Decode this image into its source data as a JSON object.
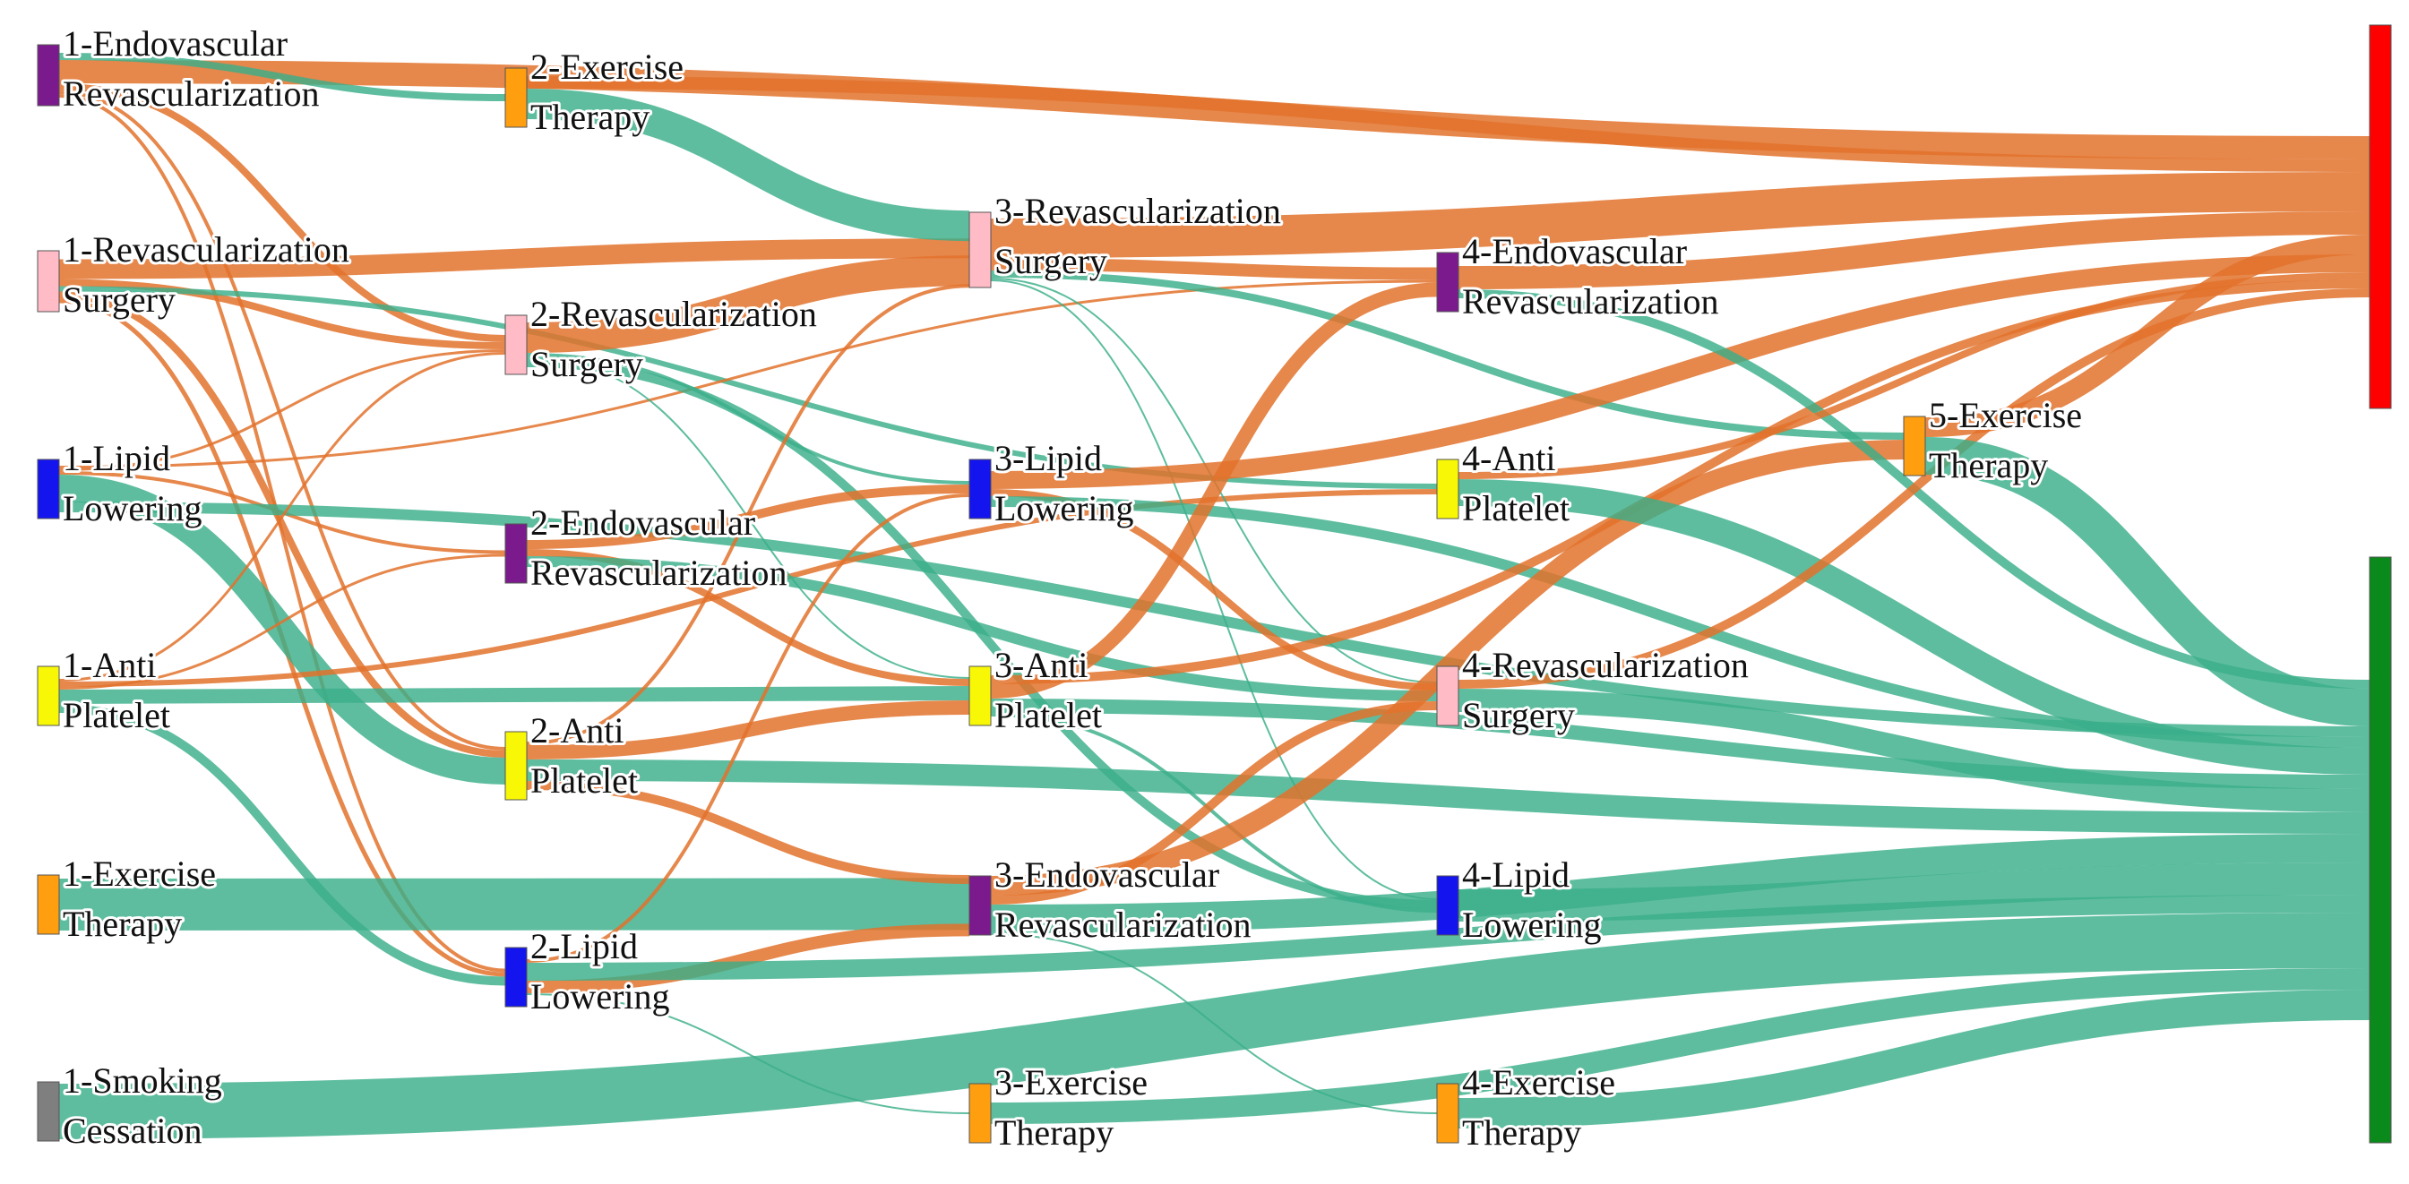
{
  "colors": {
    "link_orange": "#e2722c",
    "link_green": "#3aae8a",
    "endovascular": "#7a1a8c",
    "exercise": "#ff9e0f",
    "surgery": "#ffbcc6",
    "lipid": "#1414ee",
    "antiplatelet": "#f8f806",
    "smoking": "#7f7f7f",
    "sink_red": "#ff0000",
    "sink_green": "#0a8a1a"
  },
  "nodes": [
    {
      "id": "n1e",
      "name": "node-1-endovascular-revascularization",
      "lines": [
        "1-Endovascular",
        "Revascularization"
      ],
      "color": "endovascular"
    },
    {
      "id": "n1s",
      "name": "node-1-revascularization-surgery",
      "lines": [
        "1-Revascularization",
        "Surgery"
      ],
      "color": "surgery"
    },
    {
      "id": "n1l",
      "name": "node-1-lipid-lowering",
      "lines": [
        "1-Lipid",
        "Lowering"
      ],
      "color": "lipid"
    },
    {
      "id": "n1a",
      "name": "node-1-anti-platelet",
      "lines": [
        "1-Anti",
        "Platelet"
      ],
      "color": "antiplatelet"
    },
    {
      "id": "n1x",
      "name": "node-1-exercise-therapy",
      "lines": [
        "1-Exercise",
        "Therapy"
      ],
      "color": "exercise"
    },
    {
      "id": "n1c",
      "name": "node-1-smoking-cessation",
      "lines": [
        "1-Smoking",
        "Cessation"
      ],
      "color": "smoking"
    },
    {
      "id": "n2x",
      "name": "node-2-exercise-therapy",
      "lines": [
        "2-Exercise",
        "Therapy"
      ],
      "color": "exercise"
    },
    {
      "id": "n2s",
      "name": "node-2-revascularization-surgery",
      "lines": [
        "2-Revascularization",
        "Surgery"
      ],
      "color": "surgery"
    },
    {
      "id": "n2e",
      "name": "node-2-endovascular-revascularization",
      "lines": [
        "2-Endovascular",
        "Revascularization"
      ],
      "color": "endovascular"
    },
    {
      "id": "n2a",
      "name": "node-2-anti-platelet",
      "lines": [
        "2-Anti",
        "Platelet"
      ],
      "color": "antiplatelet"
    },
    {
      "id": "n2l",
      "name": "node-2-lipid-lowering",
      "lines": [
        "2-Lipid",
        "Lowering"
      ],
      "color": "lipid"
    },
    {
      "id": "n3s",
      "name": "node-3-revascularization-surgery",
      "lines": [
        "3-Revascularization",
        "Surgery"
      ],
      "color": "surgery"
    },
    {
      "id": "n3l",
      "name": "node-3-lipid-lowering",
      "lines": [
        "3-Lipid",
        "Lowering"
      ],
      "color": "lipid"
    },
    {
      "id": "n3a",
      "name": "node-3-anti-platelet",
      "lines": [
        "3-Anti",
        "Platelet"
      ],
      "color": "antiplatelet"
    },
    {
      "id": "n3e",
      "name": "node-3-endovascular-revascularization",
      "lines": [
        "3-Endovascular",
        "Revascularization"
      ],
      "color": "endovascular"
    },
    {
      "id": "n3x",
      "name": "node-3-exercise-therapy",
      "lines": [
        "3-Exercise",
        "Therapy"
      ],
      "color": "exercise"
    },
    {
      "id": "n4e",
      "name": "node-4-endovascular-revascularization",
      "lines": [
        "4-Endovascular",
        "Revascularization"
      ],
      "color": "endovascular"
    },
    {
      "id": "n4a",
      "name": "node-4-anti-platelet",
      "lines": [
        "4-Anti",
        "Platelet"
      ],
      "color": "antiplatelet"
    },
    {
      "id": "n4s",
      "name": "node-4-revascularization-surgery",
      "lines": [
        "4-Revascularization",
        "Surgery"
      ],
      "color": "surgery"
    },
    {
      "id": "n4l",
      "name": "node-4-lipid-lowering",
      "lines": [
        "4-Lipid",
        "Lowering"
      ],
      "color": "lipid"
    },
    {
      "id": "n4x",
      "name": "node-4-exercise-therapy",
      "lines": [
        "4-Exercise",
        "Therapy"
      ],
      "color": "exercise"
    },
    {
      "id": "n5x",
      "name": "node-5-exercise-therapy",
      "lines": [
        "5-Exercise",
        "Therapy"
      ],
      "color": "exercise"
    },
    {
      "id": "sinkR",
      "name": "sink-node-red",
      "lines": [],
      "color": "sink_red"
    },
    {
      "id": "sinkG",
      "name": "sink-node-green",
      "lines": [],
      "color": "sink_green"
    }
  ],
  "links": [
    {
      "s": "n1e",
      "t": "sinkR",
      "w": 26,
      "c": "o"
    },
    {
      "s": "n1e",
      "t": "n2x",
      "w": 8,
      "c": "g"
    },
    {
      "s": "n1e",
      "t": "n2s",
      "w": 8,
      "c": "o"
    },
    {
      "s": "n1e",
      "t": "n2a",
      "w": 4,
      "c": "o"
    },
    {
      "s": "n1e",
      "t": "n2l",
      "w": 4,
      "c": "o"
    },
    {
      "s": "n1s",
      "t": "n3s",
      "w": 22,
      "c": "o"
    },
    {
      "s": "n1s",
      "t": "n2s",
      "w": 8,
      "c": "o"
    },
    {
      "s": "n1s",
      "t": "n2a",
      "w": 8,
      "c": "o"
    },
    {
      "s": "n1s",
      "t": "n4a",
      "w": 6,
      "c": "g"
    },
    {
      "s": "n1s",
      "t": "n2l",
      "w": 5,
      "c": "o"
    },
    {
      "s": "n1l",
      "t": "n2e",
      "w": 4,
      "c": "o"
    },
    {
      "s": "n1l",
      "t": "n2s",
      "w": 3,
      "c": "o"
    },
    {
      "s": "n1l",
      "t": "n2a",
      "w": 30,
      "c": "g"
    },
    {
      "s": "n1l",
      "t": "n4e",
      "w": 3,
      "c": "o"
    },
    {
      "s": "n1l",
      "t": "sinkG",
      "w": 12,
      "c": "g"
    },
    {
      "s": "n1a",
      "t": "n2s",
      "w": 3,
      "c": "o"
    },
    {
      "s": "n1a",
      "t": "n2e",
      "w": 3,
      "c": "o"
    },
    {
      "s": "n1a",
      "t": "n3a",
      "w": 16,
      "c": "g"
    },
    {
      "s": "n1a",
      "t": "n2l",
      "w": 10,
      "c": "g"
    },
    {
      "s": "n1a",
      "t": "n4a",
      "w": 6,
      "c": "o"
    },
    {
      "s": "n1x",
      "t": "n3e",
      "w": 58,
      "c": "g"
    },
    {
      "s": "n1c",
      "t": "sinkG",
      "w": 62,
      "c": "g"
    },
    {
      "s": "n2x",
      "t": "n3s",
      "w": 34,
      "c": "g"
    },
    {
      "s": "n2x",
      "t": "sinkR",
      "w": 14,
      "c": "o"
    },
    {
      "s": "n2s",
      "t": "n3s",
      "w": 34,
      "c": "o"
    },
    {
      "s": "n2s",
      "t": "n4l",
      "w": 10,
      "c": "g"
    },
    {
      "s": "n2s",
      "t": "n3l",
      "w": 4,
      "c": "g"
    },
    {
      "s": "n2s",
      "t": "n3a",
      "w": 2,
      "c": "g"
    },
    {
      "s": "n2e",
      "t": "n3l",
      "w": 10,
      "c": "o"
    },
    {
      "s": "n2e",
      "t": "n3a",
      "w": 8,
      "c": "o"
    },
    {
      "s": "n2e",
      "t": "n4s",
      "w": 12,
      "c": "g"
    },
    {
      "s": "n2a",
      "t": "n3a",
      "w": 16,
      "c": "o"
    },
    {
      "s": "n2a",
      "t": "n3e",
      "w": 10,
      "c": "o"
    },
    {
      "s": "n2a",
      "t": "sinkG",
      "w": 24,
      "c": "g"
    },
    {
      "s": "n2a",
      "t": "n3s",
      "w": 4,
      "c": "o"
    },
    {
      "s": "n2l",
      "t": "n3e",
      "w": 14,
      "c": "o"
    },
    {
      "s": "n2l",
      "t": "sinkG",
      "w": 20,
      "c": "g"
    },
    {
      "s": "n2l",
      "t": "n3l",
      "w": 4,
      "c": "o"
    },
    {
      "s": "n2l",
      "t": "n3x",
      "w": 2,
      "c": "g"
    },
    {
      "s": "n3s",
      "t": "sinkR",
      "w": 44,
      "c": "o"
    },
    {
      "s": "n3s",
      "t": "n4e",
      "w": 14,
      "c": "o"
    },
    {
      "s": "n3s",
      "t": "n5x",
      "w": 8,
      "c": "g"
    },
    {
      "s": "n3s",
      "t": "n4l",
      "w": 2,
      "c": "g"
    },
    {
      "s": "n3s",
      "t": "n4s",
      "w": 2,
      "c": "g"
    },
    {
      "s": "n3l",
      "t": "sinkR",
      "w": 20,
      "c": "o"
    },
    {
      "s": "n3l",
      "t": "n4s",
      "w": 8,
      "c": "o"
    },
    {
      "s": "n3l",
      "t": "sinkG",
      "w": 12,
      "c": "g"
    },
    {
      "s": "n3a",
      "t": "n4e",
      "w": 16,
      "c": "o"
    },
    {
      "s": "n3a",
      "t": "sinkR",
      "w": 10,
      "c": "o"
    },
    {
      "s": "n3a",
      "t": "sinkG",
      "w": 16,
      "c": "g"
    },
    {
      "s": "n3a",
      "t": "n4l",
      "w": 4,
      "c": "g"
    },
    {
      "s": "n3e",
      "t": "n5x",
      "w": 22,
      "c": "o"
    },
    {
      "s": "n3e",
      "t": "n4s",
      "w": 10,
      "c": "o"
    },
    {
      "s": "n3e",
      "t": "sinkG",
      "w": 32,
      "c": "g"
    },
    {
      "s": "n3e",
      "t": "n4x",
      "w": 2,
      "c": "g"
    },
    {
      "s": "n3x",
      "t": "sinkG",
      "w": 24,
      "c": "g"
    },
    {
      "s": "n4e",
      "t": "sinkR",
      "w": 26,
      "c": "o"
    },
    {
      "s": "n4e",
      "t": "sinkG",
      "w": 10,
      "c": "g"
    },
    {
      "s": "n4a",
      "t": "sinkG",
      "w": 30,
      "c": "g"
    },
    {
      "s": "n4a",
      "t": "sinkR",
      "w": 8,
      "c": "o"
    },
    {
      "s": "n4s",
      "t": "sinkR",
      "w": 10,
      "c": "o"
    },
    {
      "s": "n4s",
      "t": "sinkG",
      "w": 26,
      "c": "g"
    },
    {
      "s": "n4l",
      "t": "sinkG",
      "w": 36,
      "c": "g"
    },
    {
      "s": "n4x",
      "t": "sinkG",
      "w": 34,
      "c": "g"
    },
    {
      "s": "n5x",
      "t": "sinkR",
      "w": 22,
      "c": "o"
    },
    {
      "s": "n5x",
      "t": "sinkG",
      "w": 42,
      "c": "g"
    }
  ]
}
